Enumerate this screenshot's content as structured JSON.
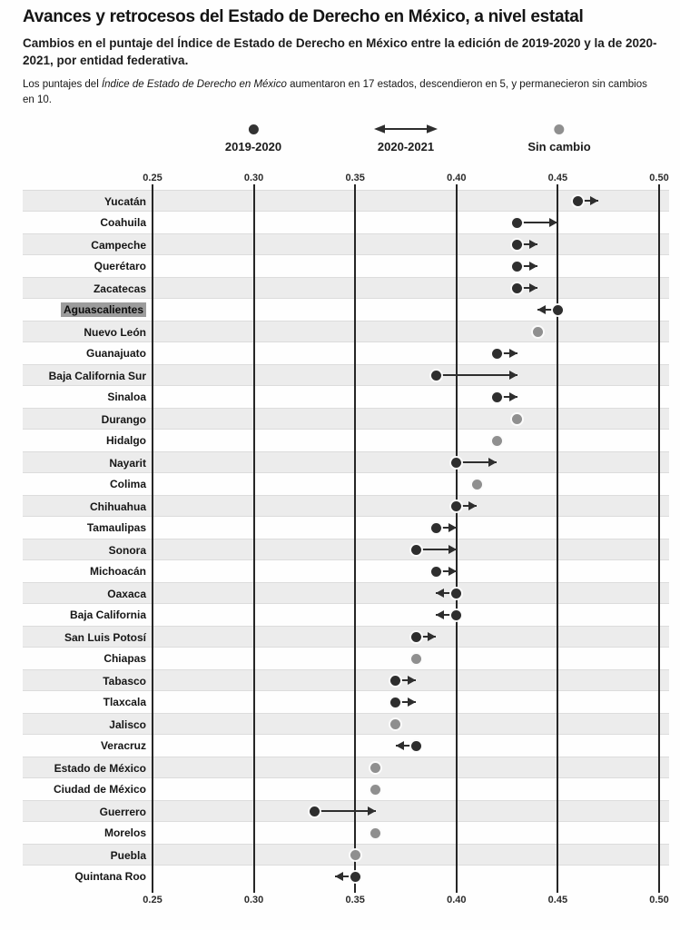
{
  "title": "Avances y retrocesos del Estado de Derecho en México, a nivel estatal",
  "subtitle": "Cambios en el puntaje del Índice de Estado de Derecho en México entre la edición de 2019-2020 y la de 2020-2021, por entidad federativa.",
  "note": {
    "prefix": "Los puntajes del ",
    "italic": "Índice de Estado de Derecho en México",
    "suffix": " aumentaron en 17 estados, descendieron en 5, y permanecieron sin cambios en 10."
  },
  "legend": {
    "start_label": "2019-2020",
    "arrow_label": "2020-2021",
    "nochange_label": "Sin cambio"
  },
  "colors": {
    "dark_dot": "#2e2e2e",
    "gray_dot": "#8f8f8f",
    "stripe": "#ececec",
    "gridline": "#262626",
    "highlight": "#9c9c9c"
  },
  "chart_data": {
    "type": "scatter",
    "variant": "dot-arrow-change",
    "xlim": [
      0.25,
      0.5
    ],
    "xticks": [
      0.25,
      0.3,
      0.35,
      0.4,
      0.45,
      0.5
    ],
    "grid": true,
    "legend_position": "top-center",
    "rows": [
      {
        "state": "Yucatán",
        "from": 0.46,
        "to": 0.47,
        "change": "up"
      },
      {
        "state": "Coahuila",
        "from": 0.43,
        "to": 0.45,
        "change": "up"
      },
      {
        "state": "Campeche",
        "from": 0.43,
        "to": 0.44,
        "change": "up"
      },
      {
        "state": "Querétaro",
        "from": 0.43,
        "to": 0.44,
        "change": "up"
      },
      {
        "state": "Zacatecas",
        "from": 0.43,
        "to": 0.44,
        "change": "up"
      },
      {
        "state": "Aguascalientes",
        "from": 0.45,
        "to": 0.44,
        "change": "down",
        "highlighted": true
      },
      {
        "state": "Nuevo León",
        "value": 0.44,
        "change": "none"
      },
      {
        "state": "Guanajuato",
        "from": 0.42,
        "to": 0.43,
        "change": "up"
      },
      {
        "state": "Baja California Sur",
        "from": 0.39,
        "to": 0.43,
        "change": "up"
      },
      {
        "state": "Sinaloa",
        "from": 0.42,
        "to": 0.43,
        "change": "up"
      },
      {
        "state": "Durango",
        "value": 0.43,
        "change": "none"
      },
      {
        "state": "Hidalgo",
        "value": 0.42,
        "change": "none"
      },
      {
        "state": "Nayarit",
        "from": 0.4,
        "to": 0.42,
        "change": "up"
      },
      {
        "state": "Colima",
        "value": 0.41,
        "change": "none"
      },
      {
        "state": "Chihuahua",
        "from": 0.4,
        "to": 0.41,
        "change": "up"
      },
      {
        "state": "Tamaulipas",
        "from": 0.39,
        "to": 0.4,
        "change": "up"
      },
      {
        "state": "Sonora",
        "from": 0.38,
        "to": 0.4,
        "change": "up"
      },
      {
        "state": "Michoacán",
        "from": 0.39,
        "to": 0.4,
        "change": "up"
      },
      {
        "state": "Oaxaca",
        "from": 0.4,
        "to": 0.39,
        "change": "down"
      },
      {
        "state": "Baja California",
        "from": 0.4,
        "to": 0.39,
        "change": "down"
      },
      {
        "state": "San Luis Potosí",
        "from": 0.38,
        "to": 0.39,
        "change": "up"
      },
      {
        "state": "Chiapas",
        "value": 0.38,
        "change": "none"
      },
      {
        "state": "Tabasco",
        "from": 0.37,
        "to": 0.38,
        "change": "up"
      },
      {
        "state": "Tlaxcala",
        "from": 0.37,
        "to": 0.38,
        "change": "up"
      },
      {
        "state": "Jalisco",
        "value": 0.37,
        "change": "none"
      },
      {
        "state": "Veracruz",
        "from": 0.38,
        "to": 0.37,
        "change": "down"
      },
      {
        "state": "Estado de México",
        "value": 0.36,
        "change": "none"
      },
      {
        "state": "Ciudad de México",
        "value": 0.36,
        "change": "none"
      },
      {
        "state": "Guerrero",
        "from": 0.33,
        "to": 0.36,
        "change": "up"
      },
      {
        "state": "Morelos",
        "value": 0.36,
        "change": "none"
      },
      {
        "state": "Puebla",
        "value": 0.35,
        "change": "none"
      },
      {
        "state": "Quintana Roo",
        "from": 0.35,
        "to": 0.34,
        "change": "down"
      }
    ]
  }
}
